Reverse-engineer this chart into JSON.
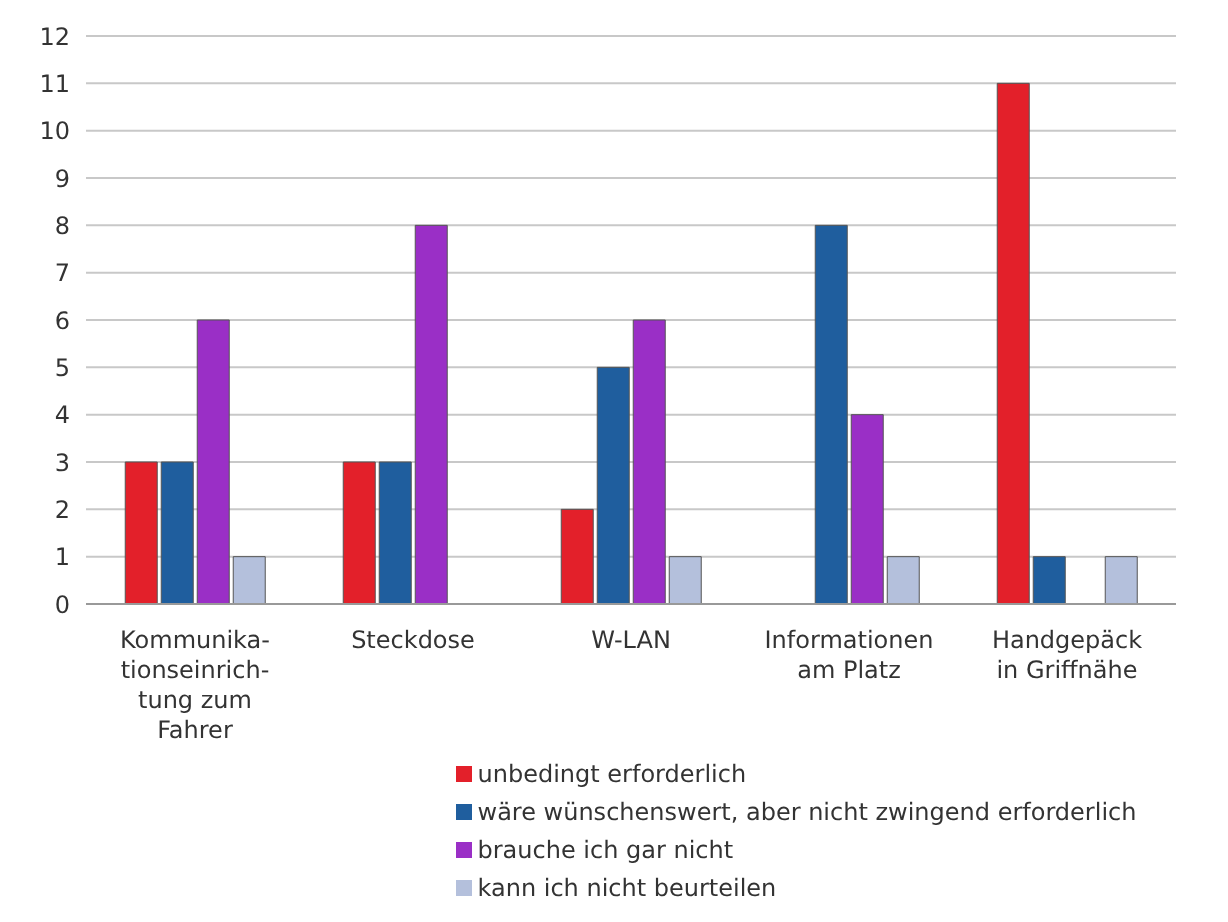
{
  "chart_data": {
    "type": "bar",
    "categories": [
      "Kommunika-tionseinrich-tung zum Fahrer",
      "Steckdose",
      "W-LAN",
      "Informationen am Platz",
      "Handgepäck in Griffnähe"
    ],
    "series": [
      {
        "name": "unbedingt erforderlich",
        "color": "#e3202a",
        "values": [
          3,
          3,
          2,
          0,
          11
        ]
      },
      {
        "name": "wäre wünschenswert, aber nicht zwingend erforderlich",
        "color": "#1f5e9e",
        "values": [
          3,
          3,
          5,
          8,
          1
        ]
      },
      {
        "name": "brauche ich gar nicht",
        "color": "#9a2fc6",
        "values": [
          6,
          8,
          6,
          4,
          0
        ]
      },
      {
        "name": "kann ich nicht beurteilen",
        "color": "#b4c0dc",
        "values": [
          1,
          0,
          1,
          1,
          1
        ]
      }
    ],
    "ylim": [
      0,
      12
    ],
    "yticks": [
      0,
      1,
      2,
      3,
      4,
      5,
      6,
      7,
      8,
      9,
      10,
      11,
      12
    ],
    "grid": "y",
    "legend": "bottom"
  }
}
